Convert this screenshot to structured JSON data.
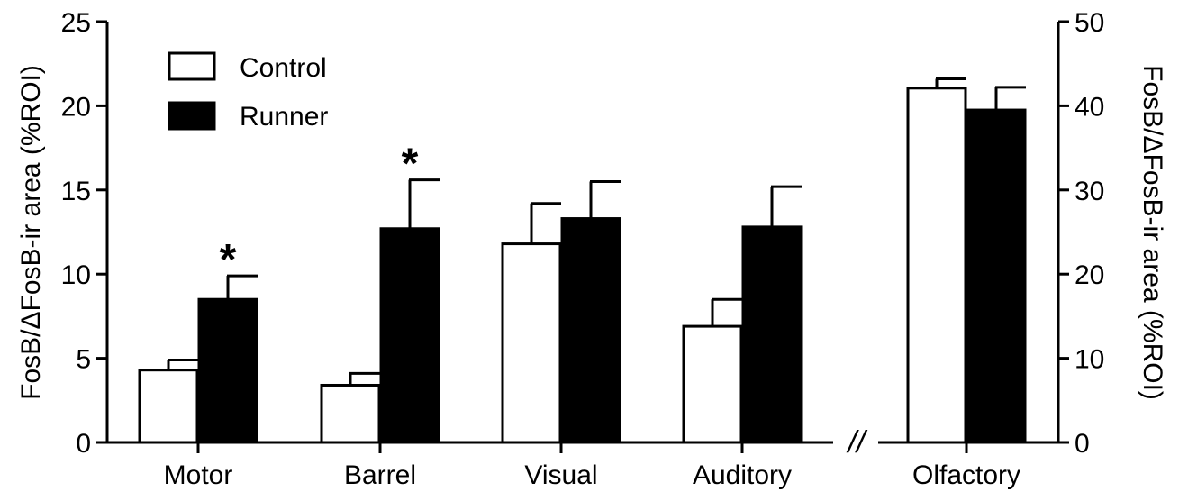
{
  "chart_data": {
    "type": "bar",
    "title": "",
    "series": [
      {
        "name": "Control",
        "color": "#ffffff"
      },
      {
        "name": "Runner",
        "color": "#000000"
      }
    ],
    "legend": {
      "placement": "top-left",
      "items": [
        "Control",
        "Runner"
      ]
    },
    "left_panel": {
      "ylabel": "FosB/ΔFosB-ir area (%ROI)",
      "ylim": [
        0,
        25
      ],
      "yticks": [
        "0",
        "5",
        "10",
        "15",
        "20",
        "25"
      ],
      "categories": [
        "Motor",
        "Barrel",
        "Visual",
        "Auditory"
      ],
      "values": {
        "Control": [
          4.3,
          3.4,
          11.8,
          6.9
        ],
        "Runner": [
          8.5,
          12.7,
          13.3,
          12.8
        ]
      },
      "errors": {
        "Control": [
          0.6,
          0.7,
          2.4,
          1.6
        ],
        "Runner": [
          1.4,
          2.9,
          2.2,
          2.4
        ]
      },
      "significance": {
        "Control": [
          "",
          "",
          "",
          ""
        ],
        "Runner": [
          "*",
          "*",
          "",
          ""
        ]
      }
    },
    "axis_break": "//",
    "right_panel": {
      "ylabel": "FosB/ΔFosB-ir area (%ROI)",
      "ylim": [
        0,
        50
      ],
      "yticks": [
        "0",
        "10",
        "20",
        "30",
        "40",
        "50"
      ],
      "categories": [
        "Olfactory"
      ],
      "values": {
        "Control": [
          42.1
        ],
        "Runner": [
          39.5
        ]
      },
      "errors": {
        "Control": [
          1.1
        ],
        "Runner": [
          2.7
        ]
      }
    }
  }
}
